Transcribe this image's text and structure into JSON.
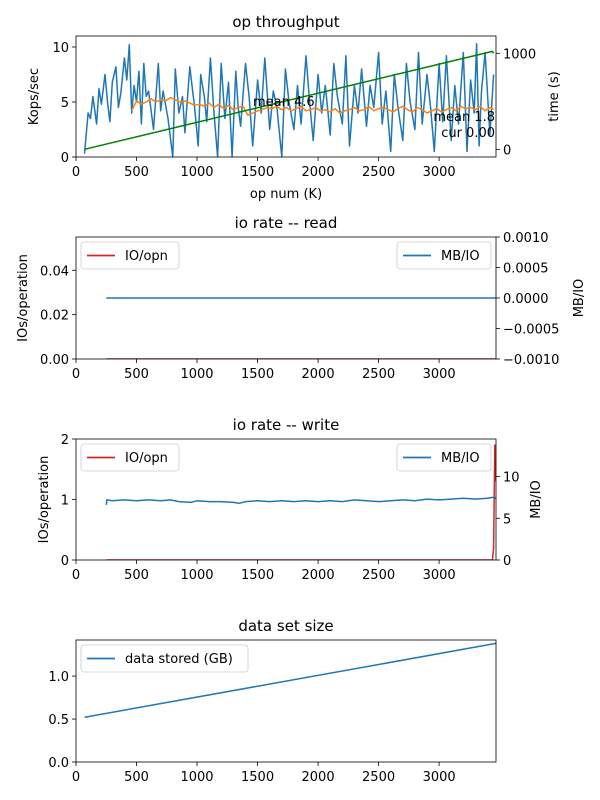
{
  "chart_data": [
    {
      "type": "line",
      "title": "op throughput",
      "xlabel": "op num (K)",
      "ylabel": "Kops/sec",
      "y2label": "time (s)",
      "xlim": [
        0,
        3470
      ],
      "ylim": [
        0,
        11
      ],
      "y2lim": [
        -80,
        1180
      ],
      "xticks": [
        "0",
        "500",
        "1000",
        "1500",
        "2000",
        "2500",
        "3000"
      ],
      "yticks": [
        "0",
        "5",
        "10"
      ],
      "y2ticks": [
        "0",
        "1000"
      ],
      "colors": {
        "throughput": "#1f77b4",
        "mean": "#ff7f0e",
        "time": "#008000"
      },
      "series": [
        {
          "axis": "y",
          "x": [
            70,
            100,
            120,
            140,
            170,
            190,
            210,
            240,
            260,
            280,
            300,
            330,
            350,
            370,
            400,
            420,
            440,
            460,
            480,
            500,
            520,
            540,
            560,
            580,
            600,
            640,
            680,
            700,
            720,
            760,
            800,
            820,
            850,
            880,
            900,
            940,
            980,
            1010,
            1030,
            1060,
            1080,
            1110,
            1140,
            1170,
            1200,
            1230,
            1260,
            1290,
            1320,
            1340,
            1360,
            1400,
            1430,
            1460,
            1500,
            1530,
            1560,
            1600,
            1630,
            1660,
            1700,
            1730,
            1760,
            1800,
            1830,
            1860,
            1900,
            1930,
            1960,
            2000,
            2030,
            2060,
            2100,
            2130,
            2160,
            2200,
            2230,
            2260,
            2300,
            2330,
            2360,
            2400,
            2430,
            2460,
            2500,
            2530,
            2560,
            2600,
            2630,
            2660,
            2700,
            2730,
            2760,
            2800,
            2830,
            2860,
            2900,
            2930,
            2960,
            3000,
            3030,
            3060,
            3100,
            3130,
            3160,
            3200,
            3230,
            3260,
            3290,
            3310,
            3330,
            3350,
            3380,
            3420,
            3450
          ],
          "values": [
            0.3,
            4.0,
            3.5,
            5.5,
            3.0,
            6.2,
            4.8,
            7.5,
            5.0,
            3.2,
            6.8,
            8.2,
            4.5,
            5.8,
            9.0,
            7.0,
            10.2,
            4.0,
            6.5,
            5.0,
            7.8,
            3.0,
            8.5,
            5.5,
            6.0,
            2.5,
            8.5,
            4.2,
            6.0,
            3.5,
            0.0,
            8.0,
            4.0,
            5.5,
            2.2,
            8.2,
            4.5,
            1.0,
            7.5,
            5.5,
            3.2,
            9.0,
            4.0,
            0.0,
            8.5,
            3.5,
            6.8,
            0.0,
            7.8,
            4.5,
            2.8,
            8.5,
            5.5,
            1.0,
            7.0,
            4.0,
            9.0,
            2.5,
            6.0,
            4.5,
            0.0,
            8.0,
            5.0,
            2.5,
            6.5,
            3.0,
            9.2,
            5.0,
            1.5,
            7.5,
            4.0,
            6.5,
            2.0,
            8.5,
            5.5,
            3.0,
            9.2,
            1.0,
            6.5,
            4.0,
            8.0,
            2.8,
            6.5,
            4.5,
            9.5,
            3.0,
            6.0,
            0.5,
            7.5,
            4.5,
            1.5,
            8.5,
            5.0,
            2.5,
            9.5,
            3.0,
            7.5,
            4.5,
            0.5,
            8.5,
            3.2,
            9.2,
            1.5,
            6.5,
            3.0,
            9.5,
            0.5,
            7.0,
            4.0,
            10.3,
            1.0,
            6.0,
            9.5,
            2.0,
            7.5
          ]
        },
        {
          "axis": "y",
          "x": [
            460,
            500,
            540,
            580,
            620,
            660,
            700,
            740,
            780,
            820,
            860,
            900,
            940,
            980,
            1020,
            1060,
            1100,
            1140,
            1180,
            1220,
            1260,
            1300,
            1340,
            1380,
            1420,
            1460,
            1500,
            1540,
            1580,
            1620,
            1660,
            1700,
            1740,
            1780,
            1820,
            1860,
            1900,
            1940,
            1980,
            2020,
            2060,
            2100,
            2140,
            2180,
            2220,
            2260,
            2300,
            2340,
            2380,
            2420,
            2460,
            2500,
            2540,
            2580,
            2620,
            2660,
            2700,
            2740,
            2780,
            2820,
            2860,
            2900,
            2940,
            2980,
            3020,
            3060,
            3100,
            3140,
            3180,
            3220,
            3260,
            3300,
            3340,
            3380,
            3420,
            3450
          ],
          "values": [
            4.2,
            5.1,
            4.8,
            5.0,
            5.3,
            5.0,
            5.2,
            5.1,
            5.4,
            5.2,
            5.0,
            5.1,
            4.9,
            4.7,
            4.8,
            4.6,
            4.9,
            4.5,
            4.8,
            4.4,
            4.7,
            4.3,
            4.5,
            4.6,
            3.8,
            4.0,
            4.2,
            4.3,
            4.5,
            4.4,
            4.6,
            4.3,
            4.5,
            4.2,
            4.4,
            4.6,
            4.2,
            4.3,
            4.5,
            4.2,
            4.3,
            4.1,
            4.4,
            4.0,
            4.2,
            4.3,
            4.5,
            4.2,
            4.3,
            4.6,
            4.2,
            4.4,
            4.5,
            4.3,
            4.1,
            4.4,
            4.6,
            4.3,
            4.1,
            4.5,
            4.3,
            4.0,
            4.2,
            4.4,
            4.1,
            4.3,
            4.5,
            4.2,
            4.6,
            4.4,
            4.5,
            4.3,
            4.6,
            4.2,
            4.5,
            4.3
          ]
        },
        {
          "axis": "y2",
          "x": [
            70,
            3440,
            3450
          ],
          "values": [
            0,
            1020,
            1000
          ]
        }
      ],
      "annotations": [
        "mean 4.6",
        "mean 1.8",
        "cur 0.00"
      ]
    },
    {
      "type": "line",
      "title": "io rate -- read",
      "ylabel": "IOs/operation",
      "y2label": "MB/IO",
      "xlim": [
        0,
        3470
      ],
      "ylim": [
        0,
        0.055
      ],
      "y2lim": [
        -0.001,
        0.001
      ],
      "xticks": [
        "0",
        "500",
        "1000",
        "1500",
        "2000",
        "2500",
        "3000"
      ],
      "yticks": [
        "0.00",
        "0.02",
        "0.04"
      ],
      "y2ticks": [
        "−0.0010",
        "−0.0005",
        "0.0000",
        "0.0005",
        "0.0010"
      ],
      "legend": {
        "left": "IO/opn",
        "right": "MB/IO",
        "left_placement": "upper left",
        "right_placement": "upper right"
      },
      "colors": {
        "io_opn": "#d62728",
        "mb_io": "#1f77b4"
      },
      "series": [
        {
          "name": "IO/opn",
          "axis": "y",
          "x": [
            250,
            3470
          ],
          "values": [
            0,
            0
          ]
        },
        {
          "name": "MB/IO",
          "axis": "y2",
          "x": [
            250,
            3470
          ],
          "values": [
            0,
            0
          ]
        }
      ]
    },
    {
      "type": "line",
      "title": "io rate -- write",
      "ylabel": "IOs/operation",
      "y2label": "MB/IO",
      "xlim": [
        0,
        3470
      ],
      "ylim": [
        0,
        2
      ],
      "y2lim": [
        0,
        14.5
      ],
      "xticks": [
        "0",
        "500",
        "1000",
        "1500",
        "2000",
        "2500",
        "3000"
      ],
      "yticks": [
        "0",
        "1",
        "2"
      ],
      "y2ticks": [
        "0",
        "5",
        "10"
      ],
      "legend": {
        "left": "IO/opn",
        "right": "MB/IO",
        "left_placement": "upper left",
        "right_placement": "upper right"
      },
      "colors": {
        "io_opn": "#d62728",
        "mb_io": "#1f77b4"
      },
      "series": [
        {
          "name": "IO/opn",
          "axis": "y",
          "x": [
            250,
            3440,
            3450,
            3460,
            3470
          ],
          "values": [
            0,
            0,
            0.2,
            1.9,
            1.3
          ]
        },
        {
          "name": "MB/IO",
          "axis": "y2",
          "x": [
            250,
            255,
            300,
            400,
            500,
            600,
            700,
            780,
            850,
            950,
            1000,
            1100,
            1200,
            1300,
            1350,
            1400,
            1500,
            1600,
            1700,
            1800,
            1900,
            2000,
            2100,
            2200,
            2300,
            2400,
            2500,
            2600,
            2700,
            2800,
            2900,
            3000,
            3100,
            3200,
            3300,
            3400,
            3440,
            3470
          ],
          "values": [
            6.6,
            7.2,
            7.1,
            7.2,
            7.1,
            7.2,
            7.1,
            7.2,
            7.0,
            6.9,
            7.1,
            7.0,
            7.0,
            6.9,
            6.8,
            7.0,
            7.1,
            7.0,
            7.1,
            7.0,
            7.1,
            7.0,
            7.1,
            7.0,
            7.2,
            7.1,
            7.0,
            7.1,
            7.2,
            7.1,
            7.3,
            7.2,
            7.3,
            7.4,
            7.3,
            7.4,
            7.5,
            7.4
          ]
        }
      ]
    },
    {
      "type": "line",
      "title": "data set size",
      "xlim": [
        0,
        3470
      ],
      "ylim": [
        0,
        1.42
      ],
      "xticks": [
        "0",
        "500",
        "1000",
        "1500",
        "2000",
        "2500",
        "3000"
      ],
      "yticks": [
        "0.0",
        "0.5",
        "1.0"
      ],
      "legend": {
        "entry": "data stored (GB)",
        "placement": "upper left"
      },
      "colors": {
        "stored": "#1f77b4"
      },
      "series": [
        {
          "name": "data stored (GB)",
          "axis": "y",
          "x": [
            70,
            3470
          ],
          "values": [
            0.52,
            1.38
          ]
        }
      ]
    }
  ]
}
